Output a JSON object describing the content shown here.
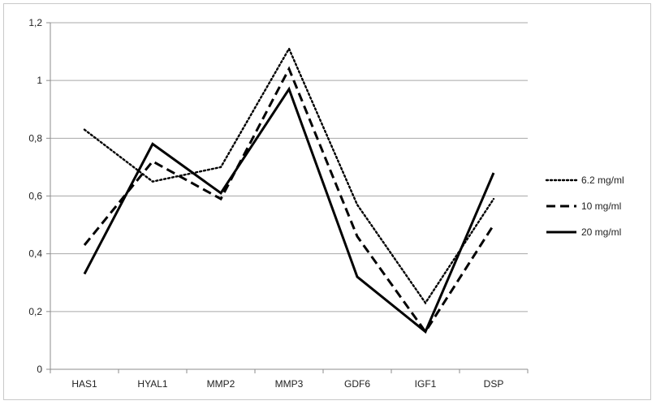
{
  "chart_data": {
    "type": "line",
    "title": "",
    "xlabel": "",
    "ylabel": "",
    "categories": [
      "HAS1",
      "HYAL1",
      "MMP2",
      "MMP3",
      "GDF6",
      "IGF1",
      "DSP"
    ],
    "ylim": [
      0,
      1.2
    ],
    "yticks": [
      0,
      0.2,
      0.4,
      0.6,
      0.8,
      1,
      1.2
    ],
    "ytick_labels": [
      "0",
      "0,2",
      "0,4",
      "0,6",
      "0,8",
      "1",
      "1,2"
    ],
    "grid": "horizontal",
    "legend_position": "right",
    "series": [
      {
        "name": "6.2 mg/ml",
        "style": "dotted",
        "color": "#000000",
        "values": [
          0.83,
          0.65,
          0.7,
          1.11,
          0.57,
          0.23,
          0.59
        ]
      },
      {
        "name": "10 mg/ml",
        "style": "dashed",
        "color": "#000000",
        "values": [
          0.43,
          0.72,
          0.59,
          1.04,
          0.46,
          0.13,
          0.5
        ]
      },
      {
        "name": "20 mg/ml",
        "style": "solid",
        "color": "#000000",
        "values": [
          0.33,
          0.78,
          0.61,
          0.97,
          0.32,
          0.13,
          0.68
        ]
      }
    ]
  }
}
